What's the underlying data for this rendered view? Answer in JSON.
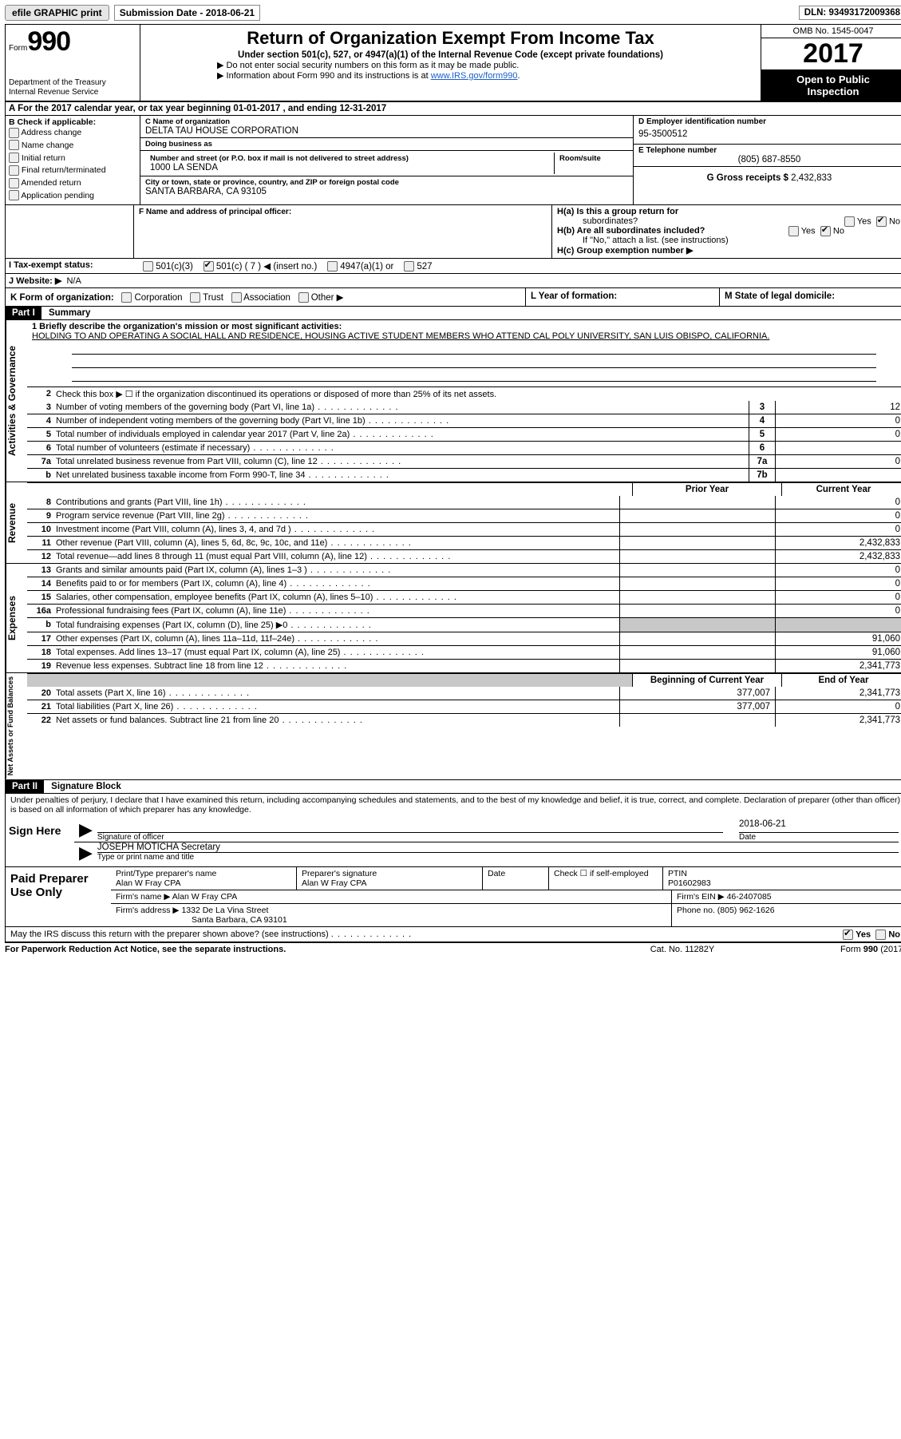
{
  "topbar": {
    "efile": "efile GRAPHIC print",
    "sub_label": "Submission Date - ",
    "sub_date": "2018-06-21",
    "dln_label": "DLN: ",
    "dln": "93493172009368"
  },
  "header": {
    "form_word": "Form",
    "form_no": "990",
    "title": "Return of Organization Exempt From Income Tax",
    "subtitle": "Under section 501(c), 527, or 4947(a)(1) of the Internal Revenue Code (except private foundations)",
    "line1": "▶ Do not enter social security numbers on this form as it may be made public.",
    "line2_pre": "▶ Information about Form 990 and its instructions is at ",
    "line2_link": "www.IRS.gov/form990",
    "dept1": "Department of the Treasury",
    "dept2": "Internal Revenue Service",
    "omb": "OMB No. 1545-0047",
    "year": "2017",
    "inspect1": "Open to Public",
    "inspect2": "Inspection"
  },
  "A": {
    "text": "A  For the 2017 calendar year, or tax year beginning 01-01-2017    , and ending 12-31-2017"
  },
  "B": {
    "label": "B Check if applicable:",
    "opts": [
      "Address change",
      "Name change",
      "Initial return",
      "Final return/terminated",
      "Amended return",
      "Application pending"
    ]
  },
  "C": {
    "name_lbl": "C Name of organization",
    "name": "DELTA TAU HOUSE CORPORATION",
    "dba_lbl": "Doing business as",
    "dba": "",
    "street_lbl": "Number and street (or P.O. box if mail is not delivered to street address)",
    "room_lbl": "Room/suite",
    "street": "1000 LA SENDA",
    "city_lbl": "City or town, state or province, country, and ZIP or foreign postal code",
    "city": "SANTA BARBARA, CA  93105"
  },
  "D": {
    "lbl": "D Employer identification number",
    "val": "95-3500512"
  },
  "E": {
    "lbl": "E Telephone number",
    "val": "(805) 687-8550"
  },
  "G": {
    "lbl": "G Gross receipts $ ",
    "val": "2,432,833"
  },
  "F": {
    "lbl": "F Name and address of principal officer:",
    "val": ""
  },
  "H": {
    "a": "H(a)  Is this a group return for",
    "a2": "subordinates?",
    "b": "H(b)  Are all subordinates included?",
    "bnote": "If \"No,\" attach a list. (see instructions)",
    "c": "H(c)  Group exemption number ▶",
    "yes": "Yes",
    "no": "No"
  },
  "I": {
    "lbl": "I   Tax-exempt status:",
    "opts": [
      "501(c)(3)",
      "501(c) ( 7 ) ◀ (insert no.)",
      "4947(a)(1) or",
      "527"
    ]
  },
  "J": {
    "lbl": "J   Website: ▶",
    "val": "N/A"
  },
  "K": {
    "lbl": "K Form of organization:",
    "opts": [
      "Corporation",
      "Trust",
      "Association",
      "Other ▶"
    ]
  },
  "L": {
    "lbl": "L Year of formation:",
    "val": ""
  },
  "M": {
    "lbl": "M State of legal domicile:",
    "val": ""
  },
  "partI": {
    "hdr": "Part I",
    "title": "Summary"
  },
  "mission": {
    "lbl": "1   Briefly describe the organization's mission or most significant activities:",
    "txt": "HOLDING TO AND OPERATING A SOCIAL HALL AND RESIDENCE, HOUSING ACTIVE STUDENT MEMBERS WHO ATTEND CAL POLY UNIVERSITY, SAN LUIS OBISPO, CALIFORNIA."
  },
  "gov": {
    "label": "Activities & Governance",
    "l2": "Check this box ▶ ☐  if the organization discontinued its operations or disposed of more than 25% of its net assets.",
    "rows": [
      {
        "n": "3",
        "t": "Number of voting members of the governing body (Part VI, line 1a)",
        "b": "3",
        "v": "12"
      },
      {
        "n": "4",
        "t": "Number of independent voting members of the governing body (Part VI, line 1b)",
        "b": "4",
        "v": "0"
      },
      {
        "n": "5",
        "t": "Total number of individuals employed in calendar year 2017 (Part V, line 2a)",
        "b": "5",
        "v": "0"
      },
      {
        "n": "6",
        "t": "Total number of volunteers (estimate if necessary)",
        "b": "6",
        "v": ""
      },
      {
        "n": "7a",
        "t": "Total unrelated business revenue from Part VIII, column (C), line 12",
        "b": "7a",
        "v": "0"
      },
      {
        "n": "b",
        "t": "Net unrelated business taxable income from Form 990-T, line 34",
        "b": "7b",
        "v": ""
      }
    ]
  },
  "yearhdr": {
    "prior": "Prior Year",
    "curr": "Current Year"
  },
  "rev": {
    "label": "Revenue",
    "rows": [
      {
        "n": "8",
        "t": "Contributions and grants (Part VIII, line 1h)",
        "p": "",
        "c": "0"
      },
      {
        "n": "9",
        "t": "Program service revenue (Part VIII, line 2g)",
        "p": "",
        "c": "0"
      },
      {
        "n": "10",
        "t": "Investment income (Part VIII, column (A), lines 3, 4, and 7d )",
        "p": "",
        "c": "0"
      },
      {
        "n": "11",
        "t": "Other revenue (Part VIII, column (A), lines 5, 6d, 8c, 9c, 10c, and 11e)",
        "p": "",
        "c": "2,432,833"
      },
      {
        "n": "12",
        "t": "Total revenue—add lines 8 through 11 (must equal Part VIII, column (A), line 12)",
        "p": "",
        "c": "2,432,833"
      }
    ]
  },
  "exp": {
    "label": "Expenses",
    "rows": [
      {
        "n": "13",
        "t": "Grants and similar amounts paid (Part IX, column (A), lines 1–3 )",
        "p": "",
        "c": "0"
      },
      {
        "n": "14",
        "t": "Benefits paid to or for members (Part IX, column (A), line 4)",
        "p": "",
        "c": "0"
      },
      {
        "n": "15",
        "t": "Salaries, other compensation, employee benefits (Part IX, column (A), lines 5–10)",
        "p": "",
        "c": "0"
      },
      {
        "n": "16a",
        "t": "Professional fundraising fees (Part IX, column (A), line 11e)",
        "p": "",
        "c": "0"
      },
      {
        "n": "b",
        "t": "Total fundraising expenses (Part IX, column (D), line 25) ▶0",
        "p": "grey",
        "c": "grey"
      },
      {
        "n": "17",
        "t": "Other expenses (Part IX, column (A), lines 11a–11d, 11f–24e)",
        "p": "",
        "c": "91,060"
      },
      {
        "n": "18",
        "t": "Total expenses. Add lines 13–17 (must equal Part IX, column (A), line 25)",
        "p": "",
        "c": "91,060"
      },
      {
        "n": "19",
        "t": "Revenue less expenses. Subtract line 18 from line 12",
        "p": "",
        "c": "2,341,773"
      }
    ]
  },
  "nethdr": {
    "beg": "Beginning of Current Year",
    "end": "End of Year"
  },
  "net": {
    "label": "Net Assets or Fund Balances",
    "rows": [
      {
        "n": "20",
        "t": "Total assets (Part X, line 16)",
        "p": "377,007",
        "c": "2,341,773"
      },
      {
        "n": "21",
        "t": "Total liabilities (Part X, line 26)",
        "p": "377,007",
        "c": "0"
      },
      {
        "n": "22",
        "t": "Net assets or fund balances. Subtract line 21 from line 20",
        "p": "",
        "c": "2,341,773"
      }
    ]
  },
  "partII": {
    "hdr": "Part II",
    "title": "Signature Block"
  },
  "penalties": "Under penalties of perjury, I declare that I have examined this return, including accompanying schedules and statements, and to the best of my knowledge and belief, it is true, correct, and complete. Declaration of preparer (other than officer) is based on all information of which preparer has any knowledge.",
  "sign": {
    "here": "Sign Here",
    "sig_lbl": "Signature of officer",
    "date_lbl": "Date",
    "date": "2018-06-21",
    "name": "JOSEPH MOTICHA Secretary",
    "name_lbl": "Type or print name and title"
  },
  "prep": {
    "title": "Paid Preparer Use Only",
    "r1": {
      "a": "Print/Type preparer's name",
      "av": "Alan W Fray CPA",
      "b": "Preparer's signature",
      "bv": "Alan W Fray CPA",
      "c": "Date",
      "cv": "",
      "d": "Check ☐ if self-employed",
      "e": "PTIN",
      "ev": "P01602983"
    },
    "r2": {
      "a": "Firm's name     ▶",
      "av": "Alan W Fray CPA",
      "b": "Firm's EIN ▶",
      "bv": "46-2407085"
    },
    "r3": {
      "a": "Firm's address ▶",
      "av": "1332 De La Vina Street",
      "b": "Phone no. (805) 962-1626"
    },
    "r3b": "Santa Barbara, CA  93101"
  },
  "discuss": {
    "txt": "May the IRS discuss this return with the preparer shown above? (see instructions)",
    "yes": "Yes",
    "no": "No"
  },
  "footer": {
    "l": "For Paperwork Reduction Act Notice, see the separate instructions.",
    "c": "Cat. No. 11282Y",
    "r": "Form 990 (2017)"
  }
}
